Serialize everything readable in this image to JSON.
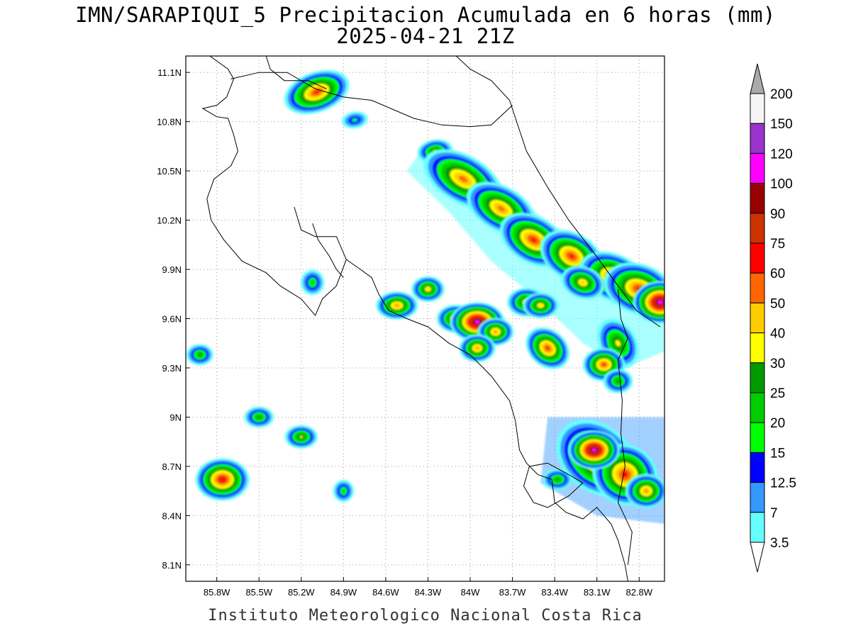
{
  "title_line1": "IMN/SARAPIQUI_5 Precipitacion Acumulada en 6 horas (mm)",
  "title_line2": "2025-04-21 21Z",
  "footer": "Instituto Meteorologico Nacional Costa Rica",
  "map": {
    "lon_range": [
      -86.02,
      -82.62
    ],
    "lat_range": [
      8.0,
      11.2
    ],
    "lon_ticks": [
      {
        "value": -85.8,
        "label": "85.8W"
      },
      {
        "value": -85.5,
        "label": "85.5W"
      },
      {
        "value": -85.2,
        "label": "85.2W"
      },
      {
        "value": -84.9,
        "label": "84.9W"
      },
      {
        "value": -84.6,
        "label": "84.6W"
      },
      {
        "value": -84.3,
        "label": "84.3W"
      },
      {
        "value": -84.0,
        "label": "84W"
      },
      {
        "value": -83.7,
        "label": "83.7W"
      },
      {
        "value": -83.4,
        "label": "83.4W"
      },
      {
        "value": -83.1,
        "label": "83.1W"
      },
      {
        "value": -82.8,
        "label": "82.8W"
      }
    ],
    "lat_ticks": [
      {
        "value": 11.1,
        "label": "11.1N"
      },
      {
        "value": 10.8,
        "label": "10.8N"
      },
      {
        "value": 10.5,
        "label": "10.5N"
      },
      {
        "value": 10.2,
        "label": "10.2N"
      },
      {
        "value": 9.9,
        "label": "9.9N"
      },
      {
        "value": 9.6,
        "label": "9.6N"
      },
      {
        "value": 9.3,
        "label": "9.3N"
      },
      {
        "value": 9.0,
        "label": "9N"
      },
      {
        "value": 8.7,
        "label": "8.7N"
      },
      {
        "value": 8.4,
        "label": "8.4N"
      },
      {
        "value": 8.1,
        "label": "8.1N"
      }
    ],
    "grid": true
  },
  "colorbar": {
    "levels": [
      {
        "label": "3.5",
        "color": "#66ffff"
      },
      {
        "label": "7",
        "color": "#3399ff"
      },
      {
        "label": "12.5",
        "color": "#0000ff"
      },
      {
        "label": "15",
        "color": "#00ff00"
      },
      {
        "label": "20",
        "color": "#00cc00"
      },
      {
        "label": "25",
        "color": "#009900"
      },
      {
        "label": "30",
        "color": "#ffff00"
      },
      {
        "label": "40",
        "color": "#ffcc00"
      },
      {
        "label": "50",
        "color": "#ff6600"
      },
      {
        "label": "60",
        "color": "#ff0000"
      },
      {
        "label": "75",
        "color": "#cc3300"
      },
      {
        "label": "90",
        "color": "#990000"
      },
      {
        "label": "100",
        "color": "#ff00ff"
      },
      {
        "label": "120",
        "color": "#9933cc"
      },
      {
        "label": "150",
        "color": "#f5f5f5"
      },
      {
        "label": "200",
        "color": "#aaaaaa"
      }
    ]
  },
  "precip_cells": [
    {
      "lon": -85.09,
      "lat": 10.98,
      "rx": 0.14,
      "ry": 0.06,
      "rot": -20,
      "level": 9
    },
    {
      "lon": -84.82,
      "lat": 10.81,
      "rx": 0.06,
      "ry": 0.03,
      "rot": -10,
      "level": 3
    },
    {
      "lon": -84.25,
      "lat": 10.62,
      "rx": 0.06,
      "ry": 0.03,
      "rot": -10,
      "level": 6
    },
    {
      "lon": -84.05,
      "lat": 10.45,
      "rx": 0.22,
      "ry": 0.09,
      "rot": 30,
      "level": 8
    },
    {
      "lon": -83.78,
      "lat": 10.27,
      "rx": 0.18,
      "ry": 0.08,
      "rot": 30,
      "level": 8
    },
    {
      "lon": -83.55,
      "lat": 10.08,
      "rx": 0.16,
      "ry": 0.08,
      "rot": 30,
      "level": 9
    },
    {
      "lon": -83.28,
      "lat": 9.98,
      "rx": 0.14,
      "ry": 0.08,
      "rot": 30,
      "level": 9
    },
    {
      "lon": -82.98,
      "lat": 9.85,
      "rx": 0.16,
      "ry": 0.08,
      "rot": 25,
      "level": 9
    },
    {
      "lon": -82.8,
      "lat": 9.78,
      "rx": 0.16,
      "ry": 0.09,
      "rot": 20,
      "level": 9
    },
    {
      "lon": -82.65,
      "lat": 9.7,
      "rx": 0.05,
      "ry": 0.04,
      "rot": 0,
      "level": 13
    },
    {
      "lon": -83.2,
      "lat": 9.82,
      "rx": 0.08,
      "ry": 0.05,
      "rot": 20,
      "level": 7
    },
    {
      "lon": -82.95,
      "lat": 9.45,
      "rx": 0.12,
      "ry": 0.07,
      "rot": 60,
      "level": 6
    },
    {
      "lon": -83.05,
      "lat": 9.32,
      "rx": 0.05,
      "ry": 0.04,
      "rot": 0,
      "level": 9
    },
    {
      "lon": -83.45,
      "lat": 9.42,
      "rx": 0.07,
      "ry": 0.05,
      "rot": 40,
      "level": 9
    },
    {
      "lon": -83.6,
      "lat": 9.7,
      "rx": 0.06,
      "ry": 0.04,
      "rot": 0,
      "level": 7
    },
    {
      "lon": -83.5,
      "lat": 9.68,
      "rx": 0.05,
      "ry": 0.03,
      "rot": 0,
      "level": 7
    },
    {
      "lon": -84.52,
      "lat": 9.68,
      "rx": 0.06,
      "ry": 0.03,
      "rot": 0,
      "level": 8
    },
    {
      "lon": -84.3,
      "lat": 9.78,
      "rx": 0.04,
      "ry": 0.03,
      "rot": 0,
      "level": 7
    },
    {
      "lon": -84.1,
      "lat": 9.6,
      "rx": 0.05,
      "ry": 0.03,
      "rot": 0,
      "level": 8
    },
    {
      "lon": -83.95,
      "lat": 9.58,
      "rx": 0.05,
      "ry": 0.03,
      "rot": 0,
      "level": 13
    },
    {
      "lon": -83.82,
      "lat": 9.52,
      "rx": 0.04,
      "ry": 0.03,
      "rot": 0,
      "level": 8
    },
    {
      "lon": -83.95,
      "lat": 9.42,
      "rx": 0.04,
      "ry": 0.03,
      "rot": 0,
      "level": 8
    },
    {
      "lon": -83.1,
      "lat": 8.75,
      "rx": 0.22,
      "ry": 0.14,
      "rot": 40,
      "level": 9
    },
    {
      "lon": -82.9,
      "lat": 8.65,
      "rx": 0.14,
      "ry": 0.12,
      "rot": 30,
      "level": 9
    },
    {
      "lon": -83.12,
      "lat": 8.8,
      "rx": 0.04,
      "ry": 0.03,
      "rot": 0,
      "level": 13
    },
    {
      "lon": -82.75,
      "lat": 8.55,
      "rx": 0.06,
      "ry": 0.05,
      "rot": 0,
      "level": 8
    },
    {
      "lon": -85.76,
      "lat": 8.62,
      "rx": 0.08,
      "ry": 0.06,
      "rot": 0,
      "level": 10
    },
    {
      "lon": -85.2,
      "lat": 8.88,
      "rx": 0.05,
      "ry": 0.03,
      "rot": 0,
      "level": 6
    },
    {
      "lon": -85.92,
      "lat": 9.38,
      "rx": 0.04,
      "ry": 0.03,
      "rot": 0,
      "level": 5
    },
    {
      "lon": -85.5,
      "lat": 9.0,
      "rx": 0.05,
      "ry": 0.03,
      "rot": 0,
      "level": 5
    },
    {
      "lon": -84.9,
      "lat": 8.55,
      "rx": 0.03,
      "ry": 0.04,
      "rot": 0,
      "level": 4
    },
    {
      "lon": -83.38,
      "lat": 8.62,
      "rx": 0.05,
      "ry": 0.03,
      "rot": 0,
      "level": 5
    },
    {
      "lon": -82.95,
      "lat": 9.22,
      "rx": 0.05,
      "ry": 0.04,
      "rot": 0,
      "level": 5
    },
    {
      "lon": -85.12,
      "lat": 9.82,
      "rx": 0.04,
      "ry": 0.05,
      "rot": 0,
      "level": 4
    }
  ]
}
